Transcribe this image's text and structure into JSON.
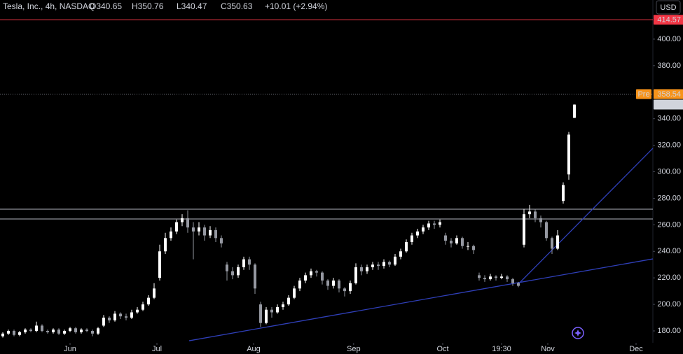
{
  "chart_data": {
    "type": "candlestick",
    "header": {
      "symbol": "Tesla, Inc., 4h, NASDAQ",
      "items": [
        "O340.65",
        "H350.76",
        "L340.47",
        "C350.63",
        "+10.01 (+2.94%)"
      ]
    },
    "currency": "USD",
    "up_color": "#ffffff",
    "down_color": "#9598a1",
    "x": [
      0,
      1,
      2,
      3,
      4,
      5,
      6,
      7,
      8,
      9,
      10,
      11,
      12,
      13,
      14,
      15,
      16,
      17,
      18,
      19,
      20,
      21,
      22,
      23,
      24,
      25,
      26,
      27,
      28,
      29,
      30,
      31,
      32,
      33,
      34,
      35,
      36,
      37,
      38,
      39,
      40,
      41,
      42,
      43,
      44,
      45,
      46,
      47,
      48,
      49,
      50,
      51,
      52,
      53,
      54,
      55,
      56,
      57,
      58,
      59,
      60,
      61,
      62,
      63,
      64,
      65,
      66,
      67,
      68,
      69,
      70,
      71,
      72,
      73,
      74,
      75,
      76,
      77,
      78,
      79,
      80,
      81,
      82,
      83,
      84,
      85,
      86,
      87,
      88,
      89,
      90,
      91,
      92,
      93,
      94,
      95,
      96,
      97,
      98,
      99,
      100,
      101,
      102
    ],
    "open": [
      176,
      178,
      180,
      177,
      179,
      181,
      180,
      184,
      180,
      179,
      181,
      178,
      180,
      182,
      179,
      181,
      180,
      178,
      184,
      190,
      188,
      193,
      191,
      190,
      194,
      196,
      200,
      205,
      220,
      240,
      250,
      255,
      262,
      265,
      258,
      255,
      258,
      252,
      256,
      250,
      230,
      225,
      222,
      228,
      234,
      230,
      200,
      186,
      196,
      194,
      198,
      200,
      205,
      212,
      218,
      222,
      225,
      224,
      218,
      214,
      218,
      212,
      210,
      216,
      228,
      225,
      228,
      230,
      229,
      232,
      230,
      236,
      240,
      247,
      252,
      255,
      258,
      261,
      260,
      252,
      248,
      246,
      250,
      244,
      244,
      222,
      220,
      219,
      221,
      220,
      221,
      219,
      216,
      245,
      268,
      270,
      265,
      262,
      250,
      242,
      278,
      298,
      340.65
    ],
    "high": [
      179,
      181,
      181,
      180,
      182,
      182,
      187,
      185,
      181,
      182,
      182,
      181,
      183,
      183,
      182,
      182,
      181,
      183,
      192,
      191,
      195,
      194,
      193,
      196,
      198,
      202,
      207,
      216,
      245,
      254,
      258,
      264,
      268,
      271,
      262,
      262,
      260,
      259,
      258,
      252,
      232,
      228,
      230,
      236,
      236,
      231,
      202,
      198,
      198,
      200,
      202,
      207,
      214,
      220,
      224,
      227,
      226,
      225,
      219,
      220,
      219,
      213,
      218,
      231,
      230,
      230,
      232,
      232,
      234,
      233,
      238,
      242,
      249,
      254,
      257,
      260,
      263,
      263,
      264,
      254,
      250,
      252,
      251,
      247,
      245,
      224,
      222,
      223,
      222,
      223,
      222,
      220,
      217,
      272,
      275,
      272,
      267,
      263,
      251,
      256,
      292,
      330,
      350.76
    ],
    "low": [
      175,
      177,
      176,
      176,
      178,
      179,
      179,
      179,
      178,
      178,
      177,
      177,
      179,
      178,
      178,
      179,
      176,
      177,
      183,
      186,
      187,
      189,
      188,
      189,
      193,
      195,
      199,
      204,
      218,
      238,
      248,
      253,
      259,
      254,
      234,
      252,
      248,
      250,
      247,
      243,
      218,
      219,
      220,
      226,
      226,
      208,
      183,
      185,
      190,
      193,
      196,
      199,
      204,
      210,
      216,
      220,
      221,
      215,
      211,
      212,
      209,
      206,
      208,
      215,
      222,
      223,
      226,
      226,
      227,
      228,
      229,
      234,
      239,
      245,
      250,
      253,
      256,
      257,
      258,
      245,
      243,
      245,
      242,
      241,
      238,
      218,
      217,
      218,
      218,
      219,
      217,
      214,
      213,
      243,
      265,
      262,
      258,
      248,
      238,
      241,
      276,
      294,
      340.47
    ],
    "close": [
      178,
      180,
      177,
      179,
      181,
      180,
      184,
      180,
      179,
      181,
      178,
      180,
      182,
      179,
      181,
      180,
      178,
      182,
      190,
      188,
      193,
      191,
      190,
      194,
      196,
      200,
      205,
      212,
      240,
      250,
      255,
      262,
      265,
      258,
      255,
      258,
      252,
      256,
      250,
      246,
      225,
      222,
      228,
      234,
      230,
      212,
      186,
      196,
      194,
      198,
      200,
      205,
      212,
      218,
      222,
      225,
      224,
      218,
      214,
      218,
      212,
      210,
      216,
      228,
      225,
      228,
      230,
      229,
      232,
      230,
      236,
      240,
      247,
      252,
      255,
      258,
      261,
      260,
      262,
      248,
      246,
      250,
      244,
      244,
      241,
      220,
      219,
      221,
      220,
      221,
      219,
      216,
      214,
      268,
      270,
      265,
      262,
      250,
      242,
      252,
      290,
      328,
      350.63
    ],
    "xlim": [
      -0.5,
      116
    ],
    "xticks": [
      {
        "value": 12,
        "label": "Jun"
      },
      {
        "value": 27.5,
        "label": "Jul"
      },
      {
        "value": 44.75,
        "label": "Aug"
      },
      {
        "value": 62.6,
        "label": "Sep"
      },
      {
        "value": 78.5,
        "label": "Oct"
      },
      {
        "value": 89,
        "label": "19:30"
      },
      {
        "value": 97.25,
        "label": "Nov"
      },
      {
        "value": 113,
        "label": "Dec"
      }
    ],
    "ylim": [
      172.1,
      429.5
    ],
    "yticks": [
      {
        "value": 180,
        "label": "180.00"
      },
      {
        "value": 200,
        "label": "200.00"
      },
      {
        "value": 220,
        "label": "220.00"
      },
      {
        "value": 240,
        "label": "240.00"
      },
      {
        "value": 260,
        "label": "260.00"
      },
      {
        "value": 280,
        "label": "280.00"
      },
      {
        "value": 300,
        "label": "300.00"
      },
      {
        "value": 320,
        "label": "320.00"
      },
      {
        "value": 340,
        "label": "340.00"
      },
      {
        "value": 380,
        "label": "380.00"
      },
      {
        "value": 400,
        "label": "400.00"
      }
    ],
    "levels": [
      271.8,
      264.4
    ],
    "trendlines": [
      {
        "x": [
          33.25,
          116
        ],
        "y": [
          172.6,
          234.3
        ],
        "color": "#2f3fb8"
      },
      {
        "x": [
          91.75,
          116
        ],
        "y": [
          214.3,
          317.7
        ],
        "color": "#2f3fb8"
      }
    ],
    "price_tags": [
      {
        "value": 414.57,
        "color": "#f23645",
        "line": "solid"
      },
      {
        "value": 358.54,
        "color": "#f7931a",
        "line": "dotted",
        "tag": "Pre"
      },
      {
        "value": 350.63,
        "color": "#d1d4dc",
        "line": "none"
      }
    ]
  }
}
